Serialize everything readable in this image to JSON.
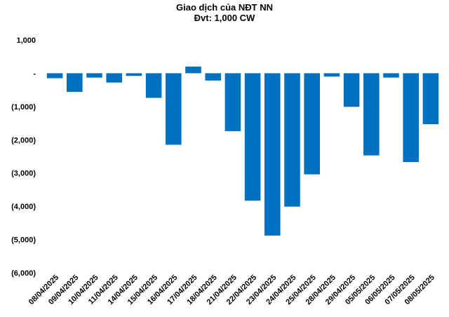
{
  "chart_data": {
    "type": "bar",
    "title": "Giao dịch của NĐT NN",
    "subtitle": "Đvt: 1,000 CW",
    "categories": [
      "08/04/2025",
      "09/04/2025",
      "10/04/2025",
      "11/04/2025",
      "14/04/2025",
      "15/04/2025",
      "16/04/2025",
      "17/04/2025",
      "18/04/2025",
      "21/04/2025",
      "22/04/2025",
      "23/04/2025",
      "24/04/2025",
      "25/04/2025",
      "28/04/2025",
      "29/04/2025",
      "05/05/2025",
      "06/05/2025",
      "07/05/2025",
      "08/05/2025"
    ],
    "values": [
      -150,
      -560,
      -130,
      -280,
      -80,
      -740,
      -2150,
      200,
      -220,
      -1740,
      -3830,
      -4880,
      -4010,
      -3040,
      -100,
      -1010,
      -2470,
      -130,
      -2670,
      -1530
    ],
    "ylim": [
      -6000,
      1000
    ],
    "yticks": [
      1000,
      0,
      -1000,
      -2000,
      -3000,
      -4000,
      -5000,
      -6000
    ],
    "ytick_labels": [
      "1,000",
      "-",
      "(1,000)",
      "(2,000)",
      "(3,000)",
      "(4,000)",
      "(5,000)",
      "(6,000)"
    ],
    "bar_color": "#0070C0",
    "grid": false,
    "legend": "none"
  }
}
